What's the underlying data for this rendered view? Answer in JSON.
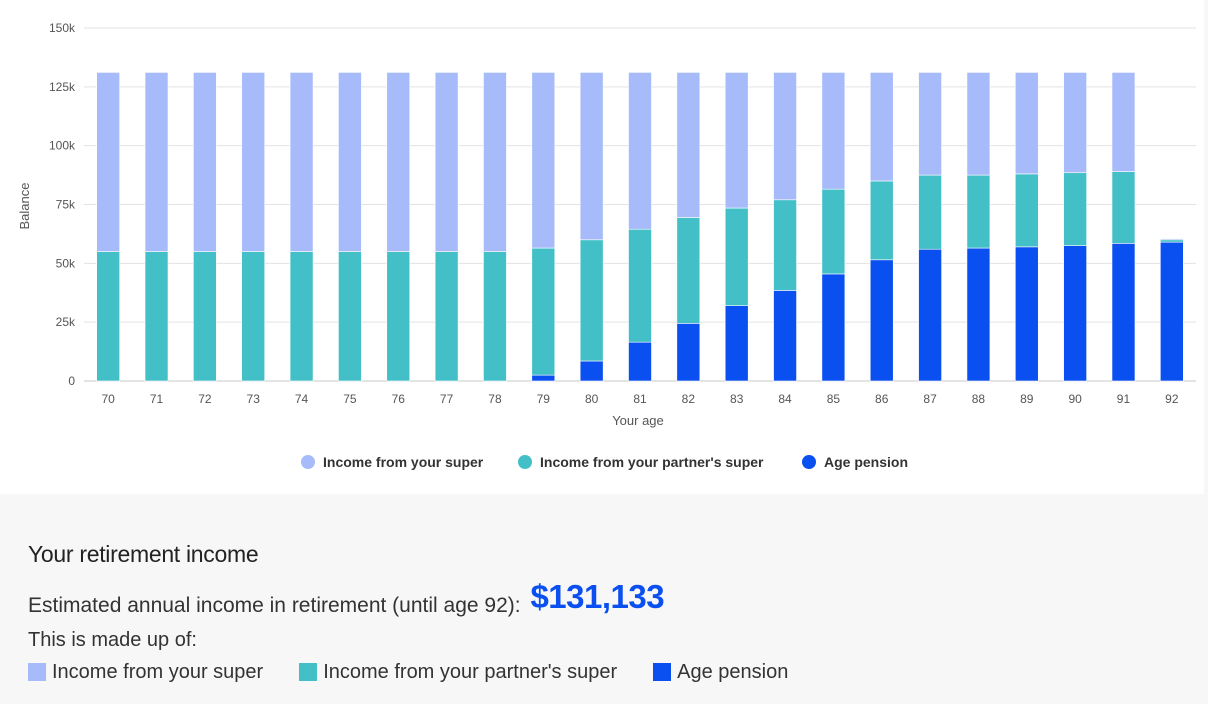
{
  "chart_data": {
    "type": "bar",
    "stacked": true,
    "xlabel": "Your age",
    "ylabel": "Balance",
    "ylim": [
      0,
      150000
    ],
    "yticks": [
      0,
      25000,
      50000,
      75000,
      100000,
      125000,
      150000
    ],
    "ytick_labels": [
      "0",
      "25k",
      "50k",
      "75k",
      "100k",
      "125k",
      "150k"
    ],
    "grid": true,
    "legend_position": "bottom",
    "categories": [
      "70",
      "71",
      "72",
      "73",
      "74",
      "75",
      "76",
      "77",
      "78",
      "79",
      "80",
      "81",
      "82",
      "83",
      "84",
      "85",
      "86",
      "87",
      "88",
      "89",
      "90",
      "91",
      "92"
    ],
    "series": [
      {
        "name": "Age pension",
        "color": "#0a4ff0",
        "values": [
          0,
          0,
          0,
          0,
          0,
          0,
          0,
          0,
          0,
          2500,
          8500,
          16500,
          24500,
          32000,
          38500,
          45500,
          51500,
          56000,
          56500,
          57000,
          57500,
          58500,
          59000
        ]
      },
      {
        "name": "Income from your partner's super",
        "color": "#43bfc7",
        "values": [
          55000,
          55000,
          55000,
          55000,
          55000,
          55000,
          55000,
          55000,
          55000,
          54000,
          51500,
          48000,
          45000,
          41500,
          38500,
          36000,
          33500,
          31500,
          31000,
          31000,
          31000,
          30500,
          1000
        ]
      },
      {
        "name": "Income from your super",
        "color": "#a7bbfa",
        "values": [
          76133,
          76133,
          76133,
          76133,
          76133,
          76133,
          76133,
          76133,
          76133,
          74633,
          71133,
          66633,
          61633,
          57633,
          54133,
          49633,
          46133,
          43633,
          43633,
          43133,
          42633,
          42133,
          500
        ]
      }
    ]
  },
  "legend": [
    {
      "label": "Income from your super",
      "color": "#a7bbfa"
    },
    {
      "label": "Income from your partner's super",
      "color": "#43bfc7"
    },
    {
      "label": "Age pension",
      "color": "#0a4ff0"
    }
  ],
  "summary": {
    "title": "Your retirement income",
    "estimate_label": "Estimated annual income in retirement (until age 92):",
    "estimate_value": "$131,133",
    "made_up_label": "This is made up of:",
    "items": [
      {
        "label": "Income from your super",
        "color": "#a7bbfa"
      },
      {
        "label": "Income from your partner's super",
        "color": "#43bfc7"
      },
      {
        "label": "Age pension",
        "color": "#0a4ff0"
      }
    ]
  }
}
